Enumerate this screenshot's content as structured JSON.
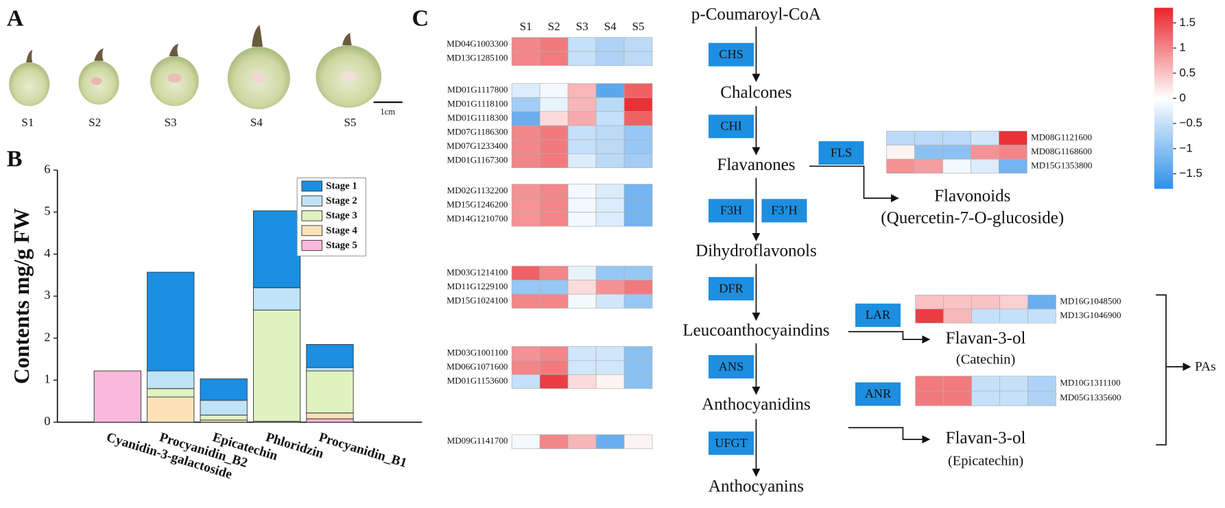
{
  "panel_labels": [
    "A",
    "B",
    "C"
  ],
  "photo": {
    "labels": [
      "S1",
      "S2",
      "S3",
      "S4",
      "S5"
    ],
    "scale_label": "1cm"
  },
  "chart_data": [
    {
      "type": "bar",
      "stacked": true,
      "ylabel": "Contents mg/g FW",
      "categories": [
        "Cyanidin-3-galactoside",
        "Procyanidin_B2",
        "Epicatechin",
        "Phloridzin",
        "Procyanidin_B1"
      ],
      "series": [
        {
          "name": "Stage 1",
          "color": "#1a8fe3",
          "values": [
            0,
            2.35,
            0.51,
            1.83,
            0.55
          ]
        },
        {
          "name": "Stage 2",
          "color": "#bfe3f7",
          "values": [
            0,
            0.42,
            0.35,
            0.53,
            0.08
          ]
        },
        {
          "name": "Stage 3",
          "color": "#dff2c0",
          "values": [
            0,
            0.2,
            0.12,
            2.65,
            1.0
          ]
        },
        {
          "name": "Stage 4",
          "color": "#fde2b8",
          "values": [
            0,
            0.6,
            0.05,
            0.02,
            0.14
          ]
        },
        {
          "name": "Stage 5",
          "color": "#f9b8dc",
          "values": [
            1.22,
            0,
            0,
            0,
            0.08
          ]
        }
      ],
      "ylim": [
        0,
        6
      ],
      "yticks": [
        0,
        1,
        2,
        3,
        4,
        5,
        6
      ],
      "legend": "upper right"
    },
    {
      "type": "heatmap",
      "columns": [
        "S1",
        "S2",
        "S3",
        "S4",
        "S5"
      ],
      "zlim": [
        -1.8,
        1.8
      ],
      "colors": {
        "low": "#2f8fe8",
        "mid": "#ffffff",
        "high": "#e8252b"
      },
      "colorbar_ticks": [
        1.5,
        1,
        0.5,
        0,
        {
          "value": -0.5,
          "label": "−0.5"
        },
        {
          "value": -1,
          "label": "−1"
        },
        {
          "value": -1.5,
          "label": "−1.5"
        }
      ],
      "groups": [
        {
          "rows": [
            {
              "gene": "MD04G1003300",
              "values": [
                1.0,
                1.1,
                -0.5,
                -0.7,
                -0.6
              ]
            },
            {
              "gene": "MD13G1285100",
              "values": [
                1.0,
                1.1,
                -0.5,
                -0.7,
                -0.6
              ]
            }
          ]
        },
        {
          "rows": [
            {
              "gene": "MD01G1117800",
              "values": [
                -0.3,
                -0.1,
                0.6,
                -1.4,
                1.3
              ]
            },
            {
              "gene": "MD01G1118100",
              "values": [
                -0.8,
                -0.2,
                0.6,
                -0.6,
                1.7
              ]
            },
            {
              "gene": "MD01G1118300",
              "values": [
                -1.3,
                0.3,
                0.7,
                -0.5,
                1.3
              ]
            },
            {
              "gene": "MD07G1186300",
              "values": [
                1.0,
                1.1,
                -0.5,
                -0.6,
                -0.9
              ]
            },
            {
              "gene": "MD07G1233400",
              "values": [
                1.0,
                1.1,
                -0.5,
                -0.6,
                -0.9
              ]
            },
            {
              "gene": "MD01G1167300",
              "values": [
                1.0,
                1.1,
                -0.3,
                -0.6,
                -0.8
              ]
            }
          ]
        },
        {
          "rows": [
            {
              "gene": "MD02G1132200",
              "values": [
                0.9,
                1.0,
                -0.1,
                -0.3,
                -1.2
              ]
            },
            {
              "gene": "MD15G1246200",
              "values": [
                0.9,
                1.0,
                -0.1,
                -0.3,
                -1.2
              ]
            },
            {
              "gene": "MD14G1210700",
              "values": [
                0.9,
                1.0,
                -0.1,
                -0.3,
                -1.2
              ]
            }
          ]
        },
        {
          "rows": [
            {
              "gene": "MD03G1214100",
              "values": [
                1.3,
                1.0,
                -0.2,
                -0.9,
                -0.9
              ]
            },
            {
              "gene": "MD11G1229100",
              "values": [
                -0.9,
                -0.9,
                0.3,
                0.9,
                1.1
              ]
            },
            {
              "gene": "MD15G1024100",
              "values": [
                1.0,
                1.0,
                -0.1,
                -0.4,
                -0.9
              ]
            }
          ]
        },
        {
          "rows": [
            {
              "gene": "MD03G1001100",
              "values": [
                0.9,
                1.0,
                -0.4,
                -0.4,
                -1.0
              ]
            },
            {
              "gene": "MD06G1071600",
              "values": [
                1.0,
                1.1,
                -0.4,
                -0.4,
                -1.0
              ]
            },
            {
              "gene": "MD01G1153600",
              "values": [
                -0.5,
                1.6,
                0.3,
                0.1,
                -1.0
              ]
            }
          ]
        },
        {
          "rows": [
            {
              "gene": "MD09G1141700",
              "values": [
                -0.1,
                1.0,
                0.6,
                -1.3,
                0.1
              ]
            }
          ]
        },
        {
          "rows": [
            {
              "gene": "MD08G1121600",
              "values": [
                -0.6,
                -0.6,
                -0.6,
                -0.4,
                1.7
              ]
            },
            {
              "gene": "MD08G1168600",
              "values": [
                0.1,
                -1.0,
                -1.0,
                0.9,
                1.0
              ]
            },
            {
              "gene": "MD15G1353800",
              "values": [
                0.9,
                0.8,
                -0.1,
                -0.3,
                -1.2
              ]
            }
          ]
        },
        {
          "rows": [
            {
              "gene": "MD16G1048500",
              "values": [
                0.5,
                0.5,
                0.5,
                0.4,
                -1.3
              ]
            },
            {
              "gene": "MD13G1046900",
              "values": [
                1.6,
                0.6,
                -0.5,
                -0.5,
                -0.5
              ]
            }
          ]
        },
        {
          "rows": [
            {
              "gene": "MD10G1311100",
              "values": [
                1.1,
                1.1,
                -0.5,
                -0.5,
                -0.7
              ]
            },
            {
              "gene": "MD05G1335600",
              "values": [
                1.1,
                1.1,
                -0.5,
                -0.5,
                -0.7
              ]
            }
          ]
        }
      ]
    }
  ],
  "pathway": {
    "compounds": [
      "p-Coumaroyl-CoA",
      "Chalcones",
      "Flavanones",
      "Dihydroflavonols",
      "Leucoanthocyaindins",
      "Anthocyanidins",
      "Anthocyanins"
    ],
    "enzymes": [
      "CHS",
      "CHI",
      "FLS",
      "F3H",
      "F3’H",
      "DFR",
      "LAR",
      "ANS",
      "ANR",
      "UFGT"
    ],
    "products": [
      "Flavonoids",
      "(Quercetin-7-O-glucoside)",
      "Flavan-3-ol",
      "(Catechin)",
      "Flavan-3-ol",
      "(Epicatechin)"
    ],
    "pas": "PAs"
  }
}
